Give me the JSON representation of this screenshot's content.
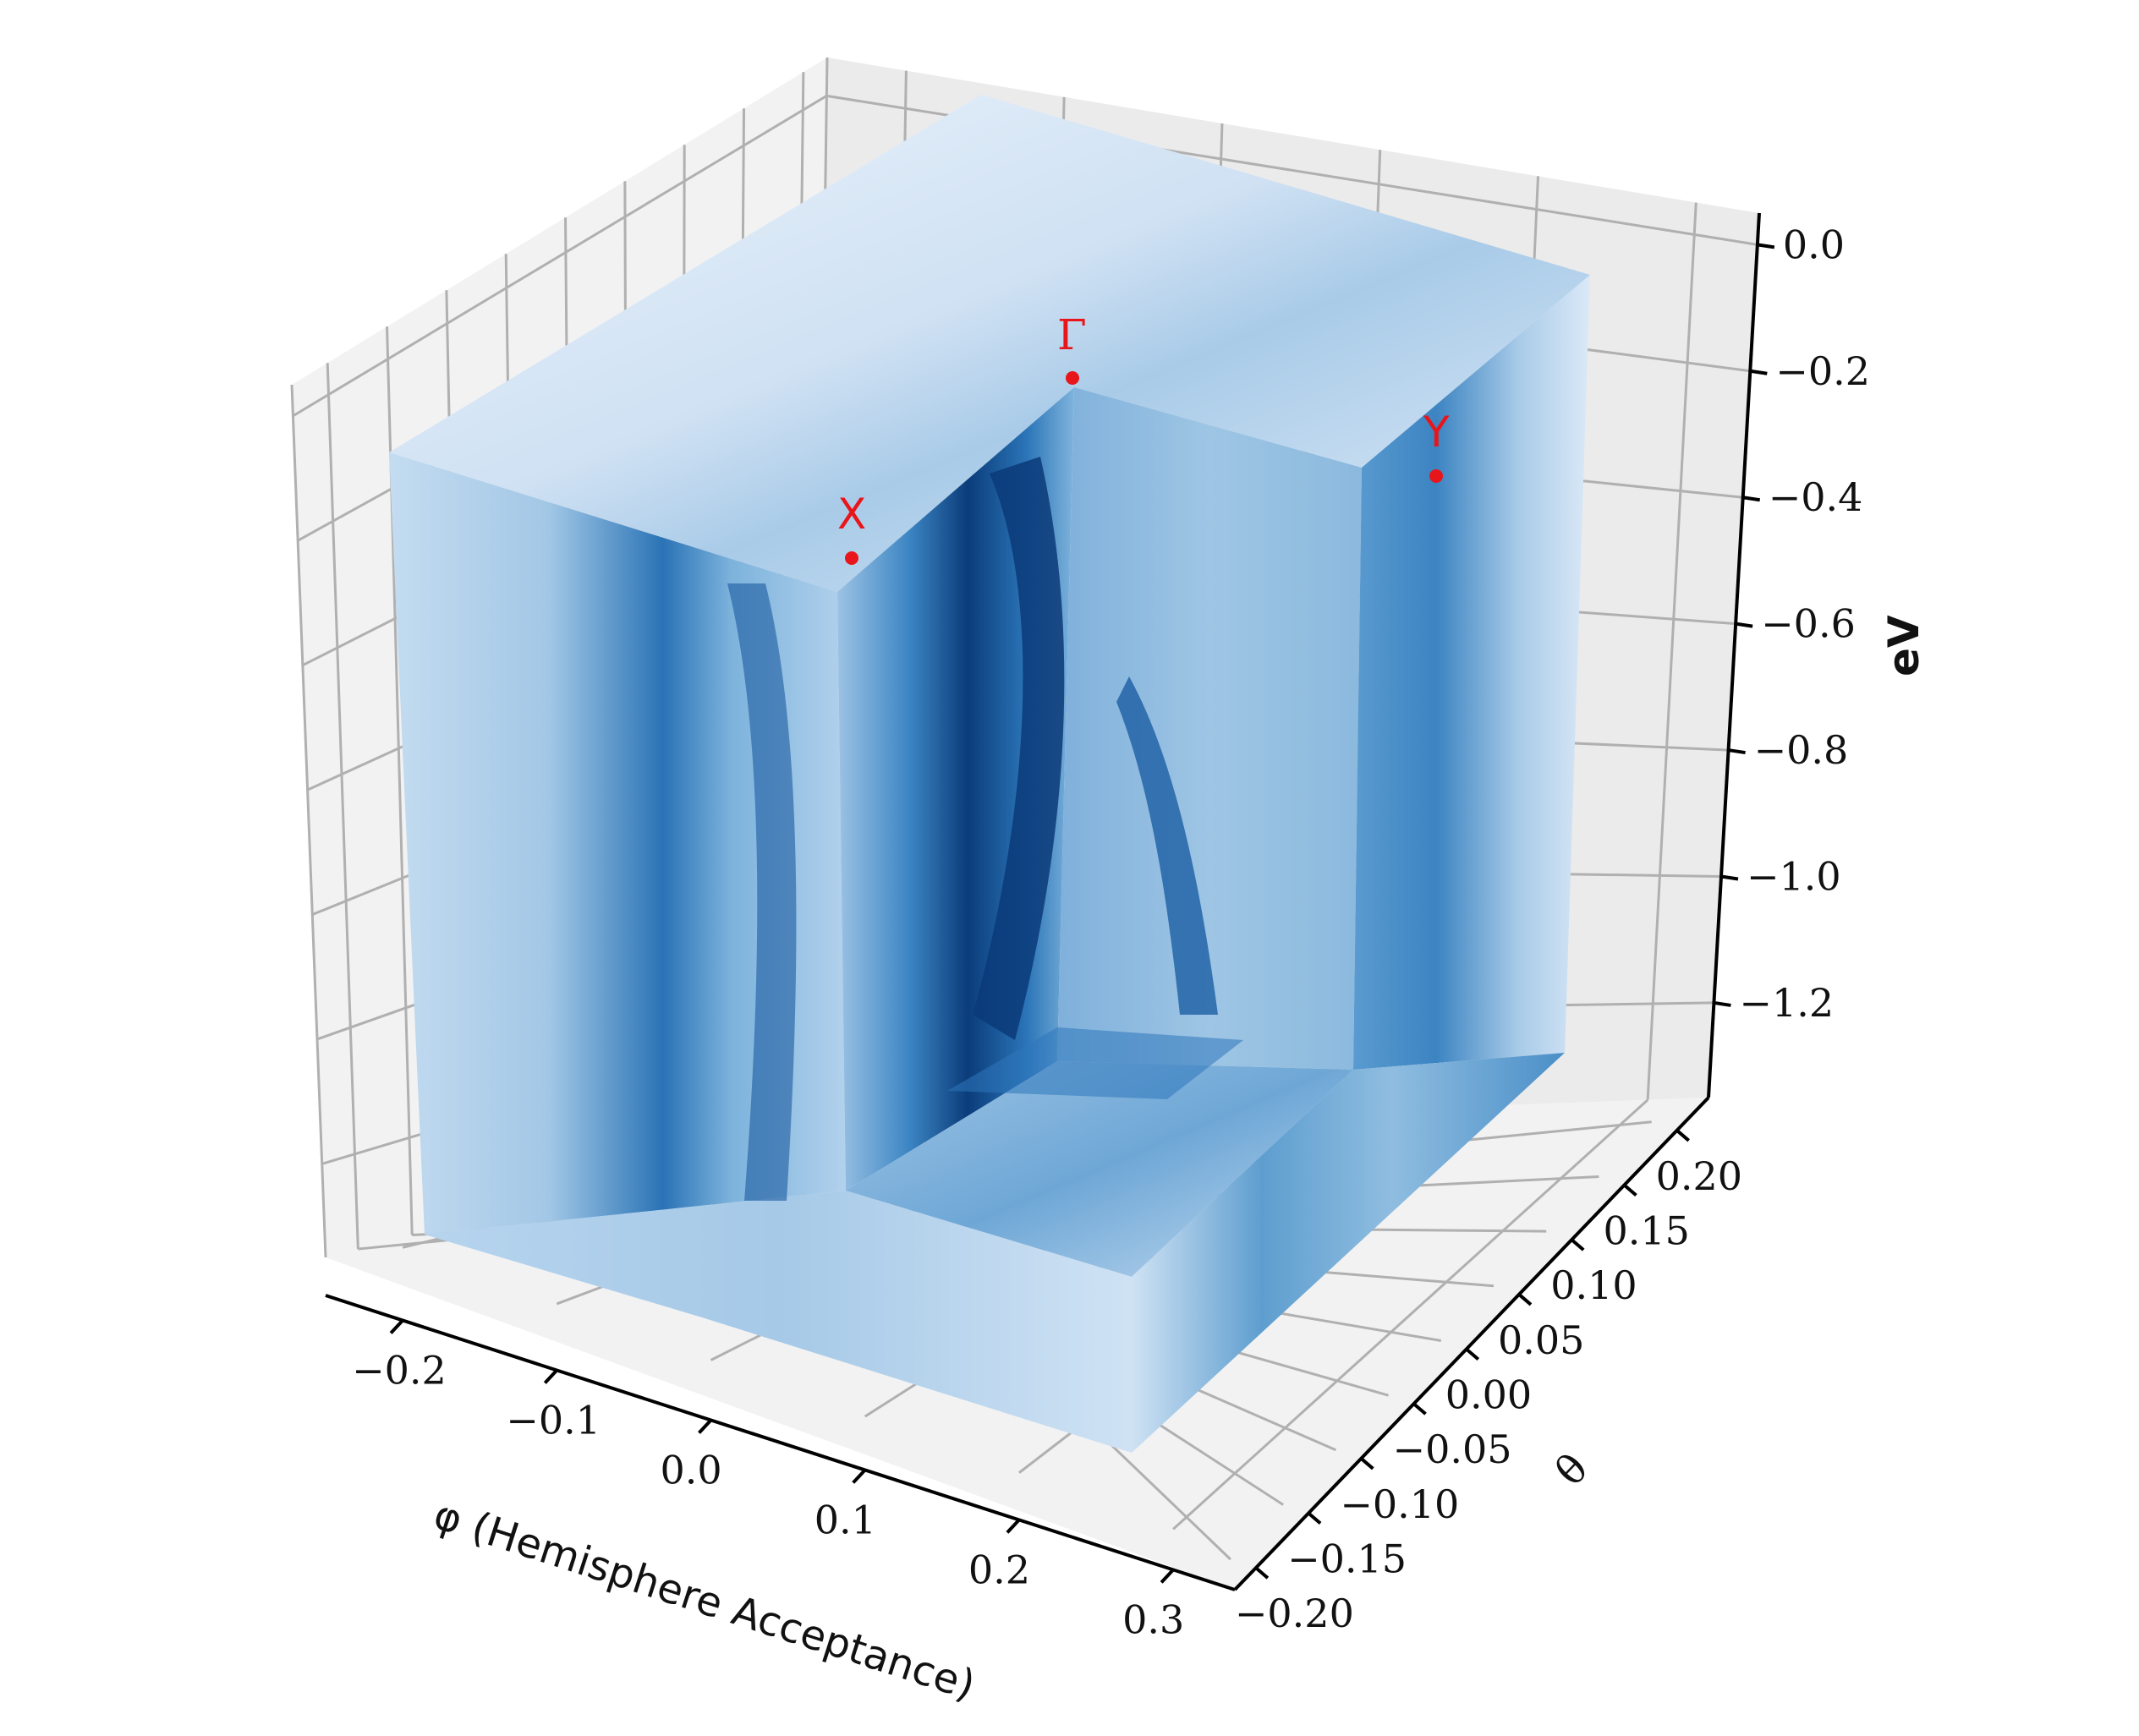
{
  "chart_data": {
    "type": "heatmap",
    "subtype": "3d-volume-cutaway",
    "colormap": "Blues",
    "grid": true,
    "axes": {
      "x": {
        "label": "φ (Hemisphere Acceptance)",
        "ticks": [
          -0.2,
          -0.1,
          0.0,
          0.1,
          0.2,
          0.3
        ],
        "tick_labels": [
          "−0.2",
          "−0.1",
          "0.0",
          "0.1",
          "0.2",
          "0.3"
        ],
        "range": [
          -0.25,
          0.34
        ]
      },
      "y": {
        "label": "θ",
        "ticks": [
          -0.2,
          -0.15,
          -0.1,
          -0.05,
          0.0,
          0.05,
          0.1,
          0.15,
          0.2
        ],
        "tick_labels": [
          "−0.20",
          "−0.15",
          "−0.10",
          "−0.05",
          "0.00",
          "0.05",
          "0.10",
          "0.15",
          "0.20"
        ],
        "range": [
          -0.22,
          0.23
        ]
      },
      "z": {
        "label": "eV",
        "ticks": [
          0.0,
          -0.2,
          -0.4,
          -0.6,
          -0.8,
          -1.0,
          -1.2
        ],
        "tick_labels": [
          "0.0",
          "−0.2",
          "−0.4",
          "−0.6",
          "−0.8",
          "−1.0",
          "−1.2"
        ],
        "range": [
          -1.35,
          0.05
        ]
      }
    },
    "annotations": [
      {
        "label": "Γ",
        "point": "gamma",
        "color": "#e8161b"
      },
      {
        "label": "X",
        "point": "x",
        "color": "#e8161b"
      },
      {
        "label": "Y",
        "point": "y",
        "color": "#e8161b"
      }
    ]
  },
  "colors": {
    "pane": "#f2f2f2",
    "pane_grid": "#b0b0b0",
    "marker": "#e8161b",
    "light": "#e8f1fb",
    "mid": "#6fa9d6",
    "dark": "#08306b"
  }
}
